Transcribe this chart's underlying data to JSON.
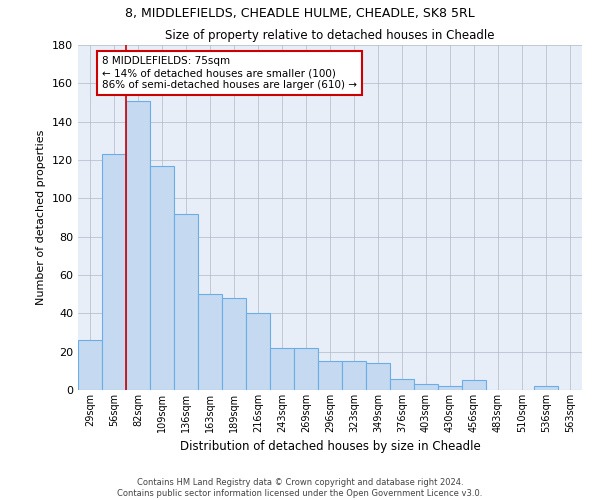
{
  "title1": "8, MIDDLEFIELDS, CHEADLE HULME, CHEADLE, SK8 5RL",
  "title2": "Size of property relative to detached houses in Cheadle",
  "xlabel": "Distribution of detached houses by size in Cheadle",
  "ylabel": "Number of detached properties",
  "categories": [
    "29sqm",
    "56sqm",
    "82sqm",
    "109sqm",
    "136sqm",
    "163sqm",
    "189sqm",
    "216sqm",
    "243sqm",
    "269sqm",
    "296sqm",
    "323sqm",
    "349sqm",
    "376sqm",
    "403sqm",
    "430sqm",
    "456sqm",
    "483sqm",
    "510sqm",
    "536sqm",
    "563sqm"
  ],
  "values": [
    26,
    123,
    151,
    117,
    92,
    50,
    48,
    40,
    22,
    22,
    15,
    15,
    14,
    6,
    3,
    2,
    5,
    0,
    0,
    2,
    0
  ],
  "bar_color": "#c5d9f0",
  "bar_edge_color": "#6aaee8",
  "vline_x": 1.5,
  "vline_color": "#cc0000",
  "annotation_text": "8 MIDDLEFIELDS: 75sqm\n← 14% of detached houses are smaller (100)\n86% of semi-detached houses are larger (610) →",
  "annotation_box_color": "#ffffff",
  "annotation_box_edge": "#cc0000",
  "ylim": [
    0,
    180
  ],
  "yticks": [
    0,
    20,
    40,
    60,
    80,
    100,
    120,
    140,
    160,
    180
  ],
  "background_color": "#e8eef7",
  "footer1": "Contains HM Land Registry data © Crown copyright and database right 2024.",
  "footer2": "Contains public sector information licensed under the Open Government Licence v3.0."
}
